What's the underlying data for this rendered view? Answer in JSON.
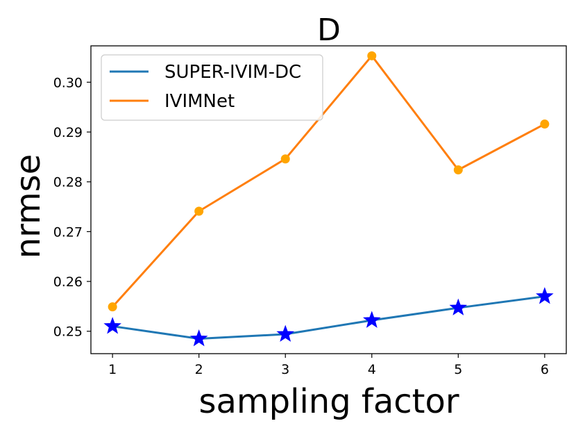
{
  "chart_data": {
    "type": "line",
    "title": "D",
    "xlabel": "sampling factor",
    "ylabel": "nrmse",
    "x": [
      1,
      2,
      3,
      4,
      5,
      6
    ],
    "xticks": [
      "1",
      "2",
      "3",
      "4",
      "5",
      "6"
    ],
    "yticks": [
      "0.25",
      "0.26",
      "0.27",
      "0.28",
      "0.29",
      "0.30"
    ],
    "xlim": [
      0.75,
      6.25
    ],
    "ylim": [
      0.2455,
      0.3073
    ],
    "grid": false,
    "legend": "top-left",
    "series": [
      {
        "name": "SUPER-IVIM-DC",
        "values": [
          0.251,
          0.2485,
          0.2494,
          0.2522,
          0.2547,
          0.257
        ],
        "line_color": "#1f77b4",
        "marker": "star",
        "marker_color": "#0000ff"
      },
      {
        "name": "IVIMNet",
        "values": [
          0.2549,
          0.2741,
          0.2846,
          0.3053,
          0.2824,
          0.2916
        ],
        "line_color": "#ff7f0e",
        "marker": "circle",
        "marker_color": "#ffa500"
      }
    ]
  }
}
